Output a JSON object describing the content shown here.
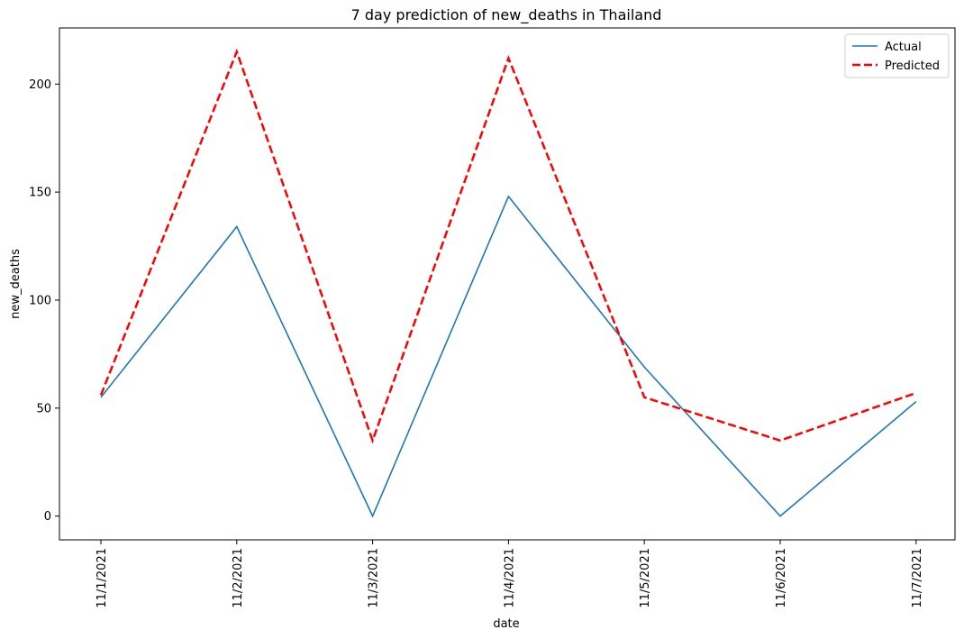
{
  "chart_data": {
    "type": "line",
    "title": "7 day prediction of new_deaths in Thailand",
    "xlabel": "date",
    "ylabel": "new_deaths",
    "categories": [
      "11/1/2021",
      "11/2/2021",
      "11/3/2021",
      "11/4/2021",
      "11/5/2021",
      "11/6/2021",
      "11/7/2021"
    ],
    "ylim": [
      -11,
      226
    ],
    "yticks": [
      0,
      50,
      100,
      150,
      200
    ],
    "grid": false,
    "legend_position": "top-right",
    "series": [
      {
        "name": "Actual",
        "values": [
          55,
          134,
          0,
          148,
          69,
          0,
          53
        ],
        "color": "#1f77b4",
        "style": "solid"
      },
      {
        "name": "Predicted",
        "values": [
          56,
          215,
          35,
          212,
          55,
          35,
          57
        ],
        "color": "#ff0000",
        "style": "dashed"
      }
    ]
  }
}
